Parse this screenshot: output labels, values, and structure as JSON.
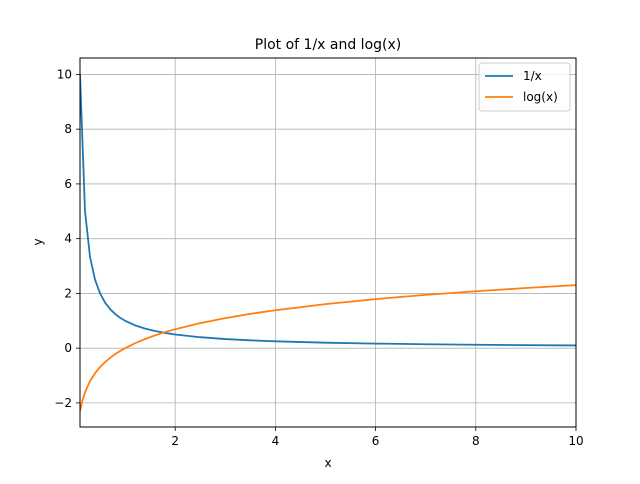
{
  "chart_data": {
    "type": "line",
    "title": "Plot of 1/x and log(x)",
    "xlabel": "x",
    "ylabel": "y",
    "xlim": [
      0.1,
      10
    ],
    "ylim": [
      -2.88,
      10.6
    ],
    "x_ticks": [
      2,
      4,
      6,
      8,
      10
    ],
    "y_ticks": [
      -2,
      0,
      2,
      4,
      6,
      8,
      10
    ],
    "x_tick_labels": [
      "2",
      "4",
      "6",
      "8",
      "10"
    ],
    "y_tick_labels": [
      "−2",
      "0",
      "2",
      "4",
      "6",
      "8",
      "10"
    ],
    "grid": true,
    "legend_position": "top-right",
    "series": [
      {
        "name": "1/x",
        "color": "#1f77b4",
        "x": [
          0.1,
          0.2,
          0.3,
          0.4,
          0.5,
          0.6,
          0.7,
          0.8,
          0.9,
          1.0,
          1.2,
          1.4,
          1.6,
          1.8,
          2.0,
          2.5,
          3.0,
          3.5,
          4.0,
          5.0,
          6.0,
          7.0,
          8.0,
          9.0,
          10.0
        ],
        "y": [
          10.0,
          5.0,
          3.333,
          2.5,
          2.0,
          1.667,
          1.429,
          1.25,
          1.111,
          1.0,
          0.833,
          0.714,
          0.625,
          0.556,
          0.5,
          0.4,
          0.333,
          0.286,
          0.25,
          0.2,
          0.167,
          0.143,
          0.125,
          0.111,
          0.1
        ]
      },
      {
        "name": "log(x)",
        "color": "#ff7f0e",
        "x": [
          0.1,
          0.15,
          0.2,
          0.3,
          0.4,
          0.5,
          0.6,
          0.7,
          0.8,
          0.9,
          1.0,
          1.2,
          1.4,
          1.6,
          1.8,
          2.0,
          2.5,
          3.0,
          3.5,
          4.0,
          5.0,
          6.0,
          7.0,
          8.0,
          9.0,
          10.0
        ],
        "y": [
          -2.303,
          -1.897,
          -1.609,
          -1.204,
          -0.916,
          -0.693,
          -0.511,
          -0.357,
          -0.223,
          -0.105,
          0.0,
          0.182,
          0.336,
          0.47,
          0.588,
          0.693,
          0.916,
          1.099,
          1.253,
          1.386,
          1.609,
          1.792,
          1.946,
          2.079,
          2.197,
          2.303
        ]
      }
    ]
  }
}
